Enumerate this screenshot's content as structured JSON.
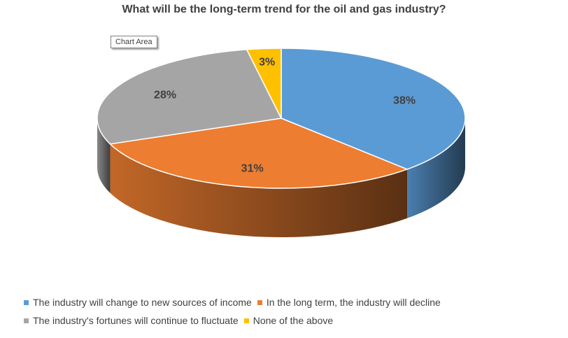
{
  "tooltip": "Chart Area",
  "chart_data": {
    "type": "pie",
    "title": "What will be the long-term trend for the oil and gas industry?",
    "is_3d": true,
    "legend_position": "bottom",
    "slices": [
      {
        "label": "The industry will change to new sources of income",
        "value": 38,
        "display": "38%",
        "color": "#5b9bd5"
      },
      {
        "label": "In the long term, the industry will decline",
        "value": 31,
        "display": "31%",
        "color": "#ed7d31"
      },
      {
        "label": "The industry's fortunes will continue to fluctuate",
        "value": 28,
        "display": "28%",
        "color": "#a5a5a5"
      },
      {
        "label": "None of the above",
        "value": 3,
        "display": "3%",
        "color": "#ffc000"
      }
    ]
  }
}
